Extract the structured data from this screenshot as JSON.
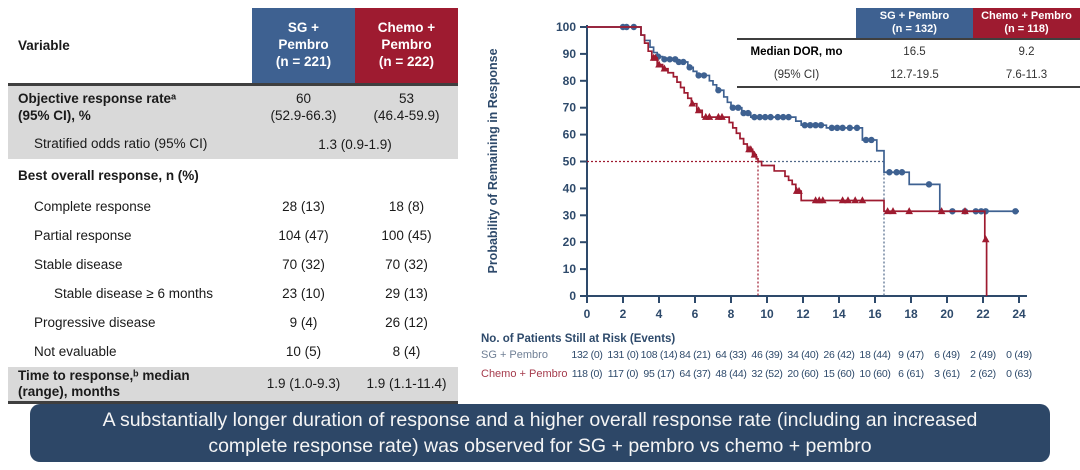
{
  "colors": {
    "blue": "#3e6191",
    "red": "#9e1b30",
    "navy": "#2e4a6b",
    "banner_bg": "#2d4767",
    "row_gray": "#d9d9d9",
    "risk_label_blue": "#6f7f95",
    "risk_label_red": "#a53b4c"
  },
  "table": {
    "variable_header": "Variable",
    "col1_header": "SG +\nPembro\n(n = 221)",
    "col2_header": "Chemo +\nPembro\n(n = 222)",
    "rows": [
      {
        "label": "Objective response rateᵃ\n(95% CI), %",
        "v1": "60\n(52.9-66.3)",
        "v2": "53\n(46.4-59.9)",
        "gray": true,
        "bold": true,
        "indent": 0,
        "h": 43
      },
      {
        "label": "Stratified odds ratio (95% CI)",
        "span": "1.3 (0.9-1.9)",
        "gray": true,
        "bold": false,
        "indent": 1,
        "h": 30
      },
      {
        "label": "Best overall response, n (%)",
        "v1": "",
        "v2": "",
        "gray": false,
        "bold": true,
        "indent": 0,
        "h": 34
      },
      {
        "label": "Complete response",
        "v1": "28 (13)",
        "v2": "18 (8)",
        "gray": false,
        "bold": false,
        "indent": 1,
        "h": 29
      },
      {
        "label": "Partial response",
        "v1": "104 (47)",
        "v2": "100 (45)",
        "gray": false,
        "bold": false,
        "indent": 1,
        "h": 29
      },
      {
        "label": "Stable disease",
        "v1": "70 (32)",
        "v2": "70 (32)",
        "gray": false,
        "bold": false,
        "indent": 1,
        "h": 29
      },
      {
        "label": "Stable disease ≥ 6 months",
        "v1": "23 (10)",
        "v2": "29 (13)",
        "gray": false,
        "bold": false,
        "indent": 2,
        "h": 29
      },
      {
        "label": "Progressive disease",
        "v1": "9 (4)",
        "v2": "26 (12)",
        "gray": false,
        "bold": false,
        "indent": 1,
        "h": 29
      },
      {
        "label": "Not evaluable",
        "v1": "10 (5)",
        "v2": "8 (4)",
        "gray": false,
        "bold": false,
        "indent": 1,
        "h": 29
      },
      {
        "label": "Time to response,ᵇ median\n(range), months",
        "v1": "1.9 (1.0-9.3)",
        "v2": "1.9 (1.1-11.4)",
        "gray": true,
        "bold": true,
        "indent": 0,
        "h": 34
      }
    ]
  },
  "inset": {
    "col1_header": "SG + Pembro\n(n = 132)",
    "col2_header": "Chemo + Pembro\n(n = 118)",
    "rows": [
      {
        "label": "Median DOR, mo",
        "bold": true,
        "v1": "16.5",
        "v2": "9.2"
      },
      {
        "label": "(95% CI)",
        "bold": false,
        "v1": "12.7-19.5",
        "v2": "7.6-11.3"
      }
    ]
  },
  "at_risk": {
    "title": "No. of Patients Still at Risk (Events)",
    "rows": [
      {
        "label": "SG + Pembro",
        "color_key": "risk_label_blue",
        "values": [
          "132 (0)",
          "131 (0)",
          "108 (14)",
          "84 (21)",
          "64 (33)",
          "46 (39)",
          "34 (40)",
          "26 (42)",
          "18 (44)",
          "9 (47)",
          "6 (49)",
          "2 (49)",
          "0 (49)"
        ]
      },
      {
        "label": "Chemo + Pembro",
        "color_key": "risk_label_red",
        "values": [
          "118 (0)",
          "117 (0)",
          "95 (17)",
          "64 (37)",
          "48 (44)",
          "32 (52)",
          "20 (60)",
          "15 (60)",
          "10 (60)",
          "6 (61)",
          "3 (61)",
          "2 (62)",
          "0 (63)"
        ]
      }
    ]
  },
  "banner": {
    "text": "A substantially longer duration of response and a higher overall response rate (including an increased complete response rate) was observed for SG + pembro vs chemo + pembro"
  },
  "chart_data": {
    "type": "line",
    "subtype": "kaplan-meier",
    "title": "",
    "xlabel": "",
    "ylabel": "Probability of Remaining in Response",
    "xlim": [
      0,
      24
    ],
    "ylim": [
      0,
      100
    ],
    "xticks": [
      0,
      2,
      4,
      6,
      8,
      10,
      12,
      14,
      16,
      18,
      20,
      22,
      24
    ],
    "yticks": [
      0,
      10,
      20,
      30,
      40,
      50,
      60,
      70,
      80,
      90,
      100
    ],
    "reference_probability": 50,
    "series": [
      {
        "name": "SG + Pembro",
        "n": 132,
        "median_dor_mo": 16.5,
        "ci_95": "12.7-19.5",
        "color": "#3e6191",
        "marker": "circle",
        "median_line_x": 16.5,
        "steps": [
          [
            0,
            100
          ],
          [
            3.0,
            97
          ],
          [
            3.2,
            95
          ],
          [
            3.5,
            92.5
          ],
          [
            3.7,
            90.5
          ],
          [
            3.9,
            89
          ],
          [
            4.2,
            88
          ],
          [
            5.0,
            87
          ],
          [
            5.6,
            85
          ],
          [
            5.9,
            83.5
          ],
          [
            6.1,
            82
          ],
          [
            6.8,
            80
          ],
          [
            7.0,
            78.5
          ],
          [
            7.2,
            76.5
          ],
          [
            7.6,
            74
          ],
          [
            7.8,
            72
          ],
          [
            8.0,
            70
          ],
          [
            8.6,
            68
          ],
          [
            9.1,
            66.5
          ],
          [
            11.6,
            65
          ],
          [
            11.9,
            63.5
          ],
          [
            13.3,
            62.5
          ],
          [
            15.3,
            58
          ],
          [
            16.1,
            54
          ],
          [
            16.5,
            46
          ],
          [
            17.9,
            41.5
          ],
          [
            19.6,
            31.5
          ],
          [
            24,
            31.5
          ]
        ],
        "censors": [
          [
            2.0,
            100
          ],
          [
            2.2,
            100
          ],
          [
            2.6,
            100
          ],
          [
            3.95,
            89
          ],
          [
            4.3,
            88
          ],
          [
            4.6,
            88
          ],
          [
            4.9,
            88
          ],
          [
            5.1,
            87
          ],
          [
            5.35,
            87
          ],
          [
            5.7,
            85
          ],
          [
            6.2,
            82
          ],
          [
            6.5,
            82
          ],
          [
            7.3,
            76.5
          ],
          [
            8.1,
            70
          ],
          [
            8.4,
            70
          ],
          [
            8.7,
            68
          ],
          [
            8.95,
            68
          ],
          [
            9.3,
            66.5
          ],
          [
            9.6,
            66.5
          ],
          [
            9.9,
            66.5
          ],
          [
            10.2,
            66.5
          ],
          [
            10.6,
            66.5
          ],
          [
            10.9,
            66.5
          ],
          [
            11.2,
            66.5
          ],
          [
            12.1,
            63.5
          ],
          [
            12.4,
            63.5
          ],
          [
            12.7,
            63.5
          ],
          [
            13.0,
            63.5
          ],
          [
            13.6,
            62.5
          ],
          [
            13.9,
            62.5
          ],
          [
            14.2,
            62.5
          ],
          [
            14.6,
            62.5
          ],
          [
            15.0,
            62.5
          ],
          [
            15.5,
            58
          ],
          [
            15.8,
            58
          ],
          [
            16.8,
            46
          ],
          [
            17.2,
            46
          ],
          [
            17.5,
            46
          ],
          [
            19.0,
            41.5
          ],
          [
            20.3,
            31.5
          ],
          [
            21.0,
            31.5
          ],
          [
            21.6,
            31.5
          ],
          [
            21.9,
            31.5
          ],
          [
            22.15,
            31.5
          ],
          [
            23.8,
            31.5
          ]
        ]
      },
      {
        "name": "Chemo + Pembro",
        "n": 118,
        "median_dor_mo": 9.2,
        "ci_95": "7.6-11.3",
        "color": "#9e1b30",
        "marker": "triangle",
        "median_line_x": 9.5,
        "steps": [
          [
            0,
            100
          ],
          [
            3.0,
            97
          ],
          [
            3.2,
            94
          ],
          [
            3.4,
            91
          ],
          [
            3.6,
            88.5
          ],
          [
            3.9,
            86
          ],
          [
            4.2,
            84.5
          ],
          [
            4.5,
            83
          ],
          [
            4.8,
            81.5
          ],
          [
            5.0,
            79.5
          ],
          [
            5.2,
            77.5
          ],
          [
            5.4,
            75.5
          ],
          [
            5.6,
            73.5
          ],
          [
            5.8,
            71.5
          ],
          [
            6.1,
            69
          ],
          [
            6.4,
            66.5
          ],
          [
            7.9,
            64.5
          ],
          [
            8.1,
            62.5
          ],
          [
            8.3,
            60.5
          ],
          [
            8.5,
            58.5
          ],
          [
            8.7,
            56.5
          ],
          [
            8.9,
            54.5
          ],
          [
            9.2,
            52.5
          ],
          [
            9.4,
            51
          ],
          [
            9.5,
            50
          ],
          [
            9.7,
            48.5
          ],
          [
            10.4,
            46.5
          ],
          [
            11.0,
            44.5
          ],
          [
            11.2,
            43
          ],
          [
            11.4,
            41.5
          ],
          [
            11.6,
            39
          ],
          [
            11.9,
            35.5
          ],
          [
            16.5,
            31.5
          ],
          [
            22.1,
            21
          ],
          [
            22.2,
            0
          ]
        ],
        "censors": [
          [
            3.7,
            88.5
          ],
          [
            3.8,
            88.5
          ],
          [
            4.0,
            86
          ],
          [
            4.3,
            84.5
          ],
          [
            5.85,
            71.5
          ],
          [
            6.2,
            69
          ],
          [
            6.6,
            66.5
          ],
          [
            6.8,
            66.5
          ],
          [
            7.3,
            66.5
          ],
          [
            7.5,
            66.5
          ],
          [
            9.0,
            54.5
          ],
          [
            9.1,
            54.5
          ],
          [
            9.3,
            52.5
          ],
          [
            11.65,
            39
          ],
          [
            11.78,
            39
          ],
          [
            12.7,
            35.5
          ],
          [
            12.9,
            35.5
          ],
          [
            13.1,
            35.5
          ],
          [
            14.2,
            35.5
          ],
          [
            14.5,
            35.5
          ],
          [
            14.9,
            35.5
          ],
          [
            15.3,
            35.5
          ],
          [
            16.7,
            31.5
          ],
          [
            17.0,
            31.5
          ],
          [
            17.9,
            31.5
          ],
          [
            19.7,
            31.5
          ],
          [
            21.0,
            31.5
          ],
          [
            22.15,
            21
          ]
        ]
      }
    ]
  }
}
